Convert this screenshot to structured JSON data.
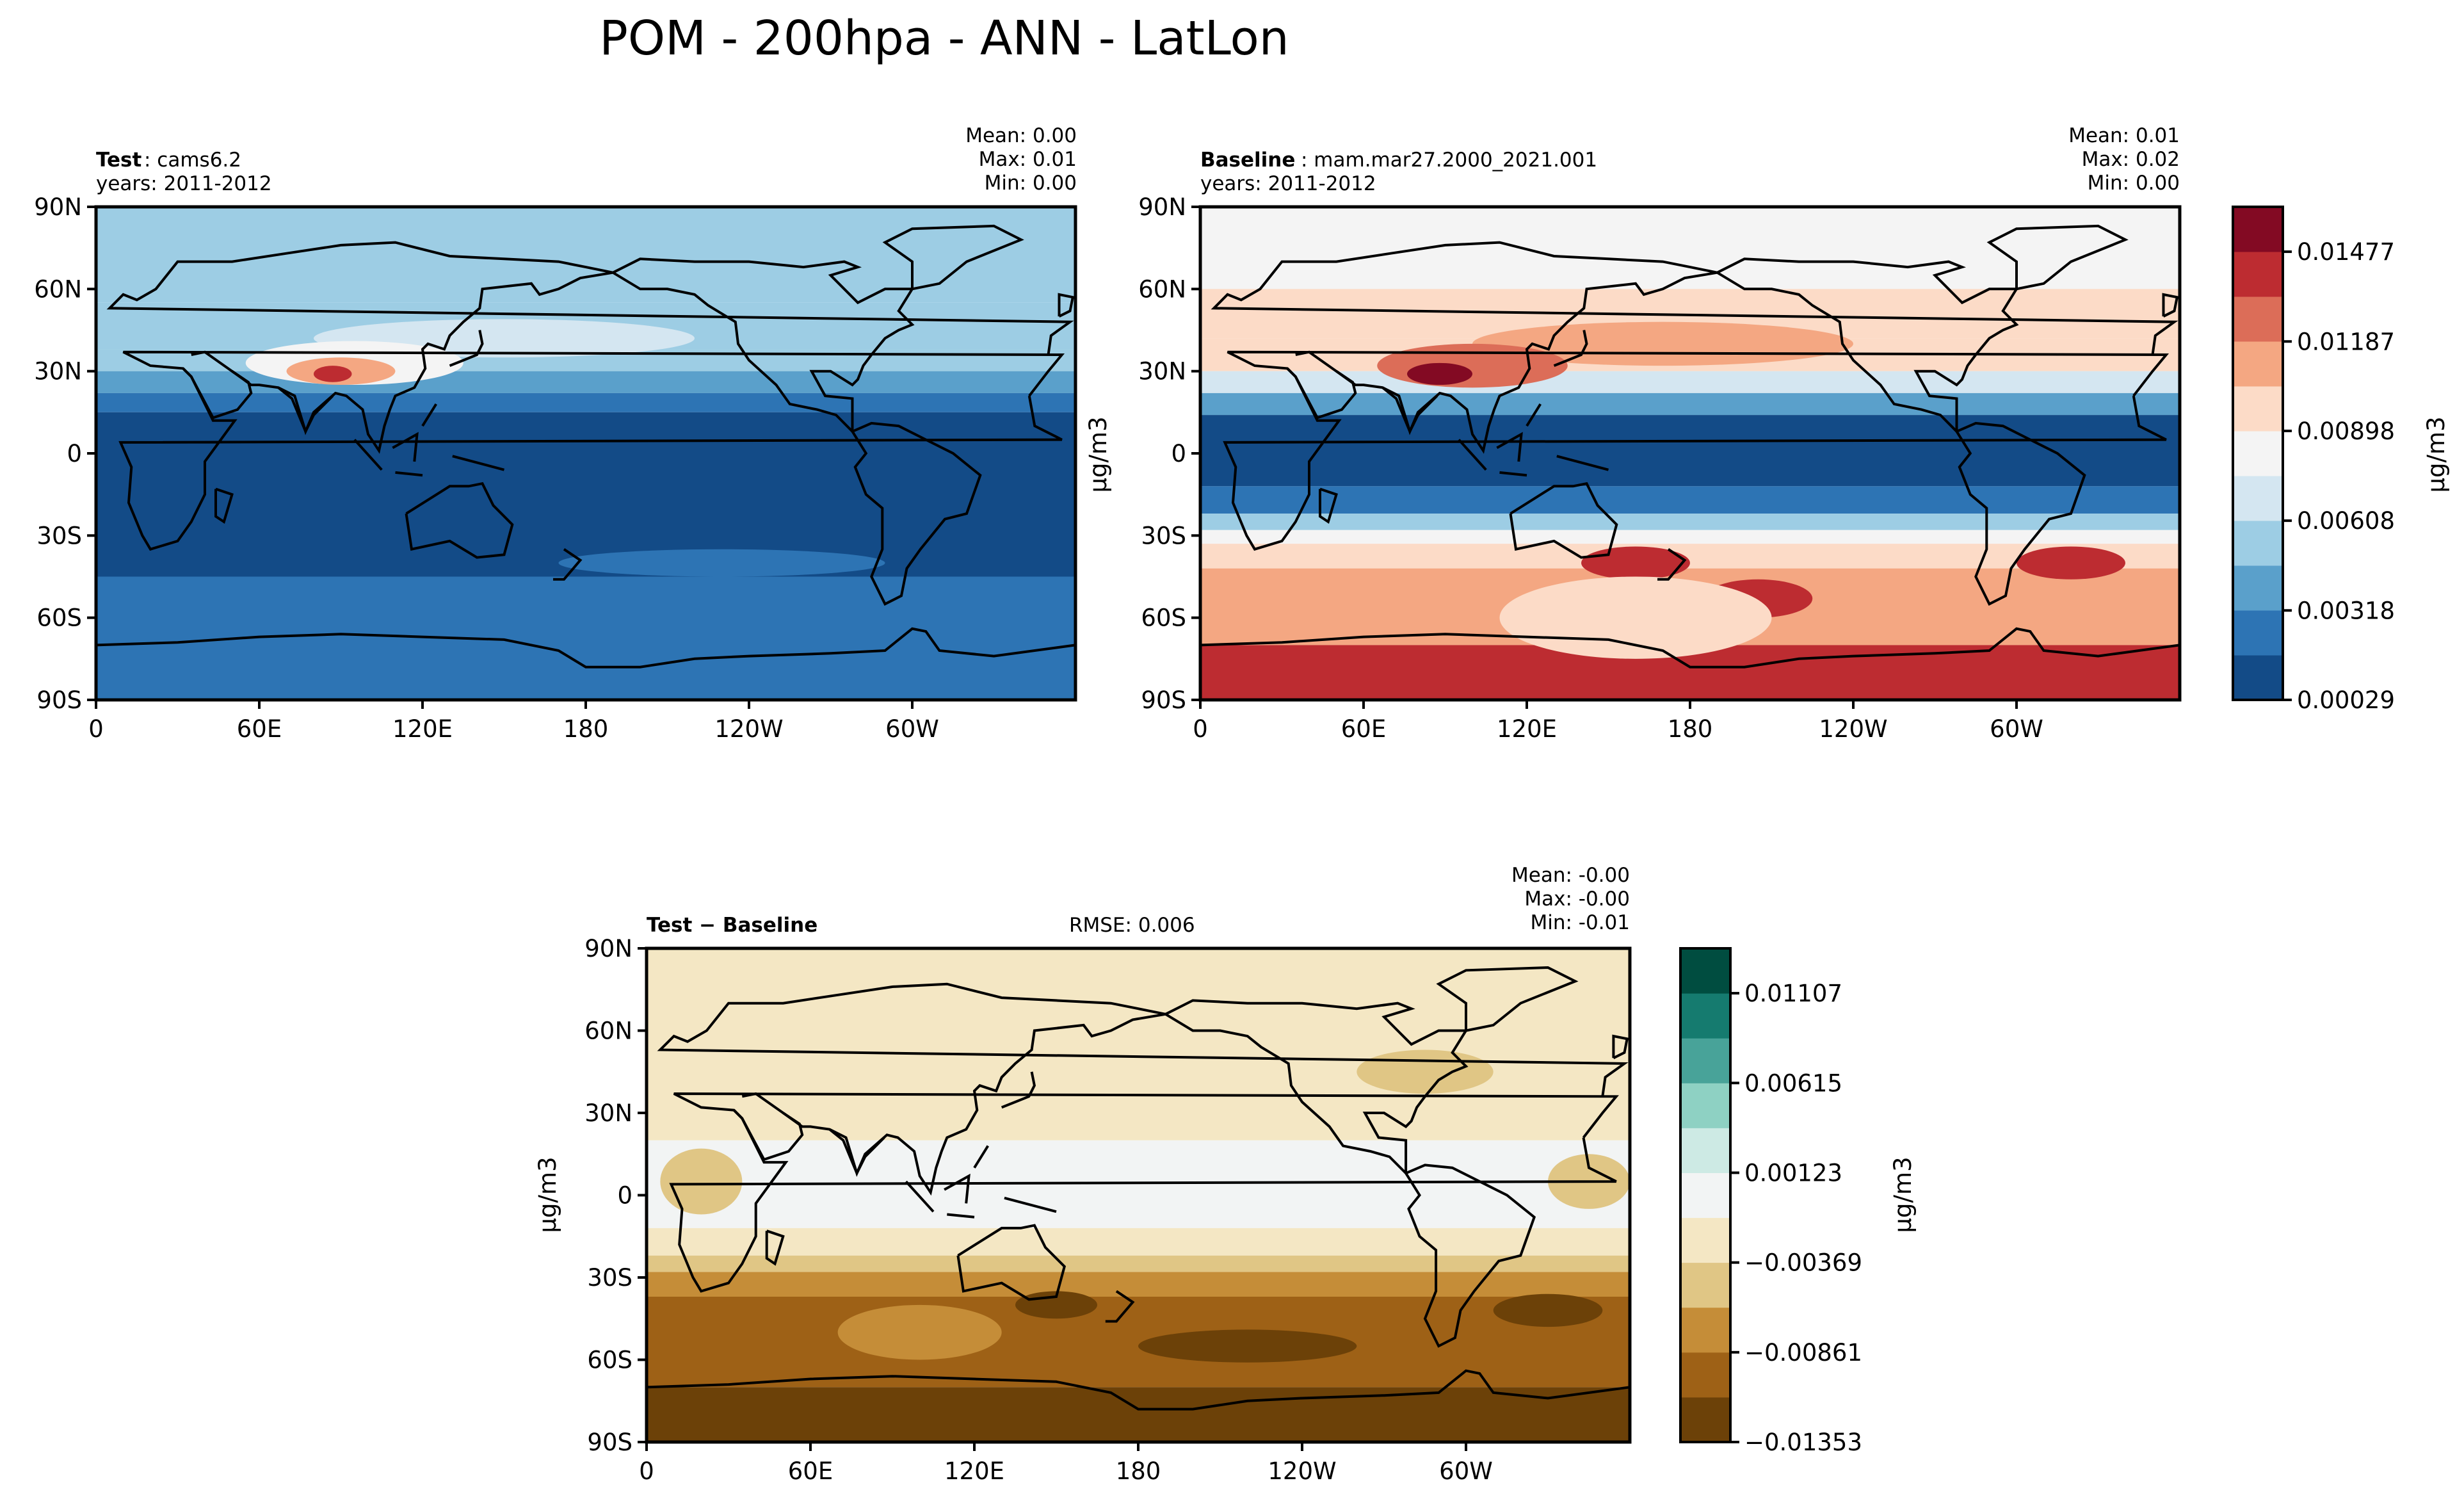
{
  "figure": {
    "title": "POM - 200hpa - ANN - LatLon"
  },
  "colors": {
    "seq": [
      "#134b87",
      "#2d74b4",
      "#5aa0cb",
      "#9dcde4",
      "#d4e6f1",
      "#f4f4f4",
      "#fcdbc7",
      "#f4a782",
      "#dc6d58",
      "#bd2c31",
      "#830a23"
    ],
    "diff": [
      "#6c4108",
      "#9e6116",
      "#c58d38",
      "#e0c685",
      "#f4e7c4",
      "#f2f4f4",
      "#cdeae4",
      "#8ed1c3",
      "#48a399",
      "#157b6f",
      "#004d40"
    ],
    "outline": "#000000"
  },
  "chart_data": [
    {
      "type": "heatmap",
      "panel": "test",
      "label_bold": "Test",
      "label_rest": ": cams6.2",
      "years": "years: 2011-2012",
      "stats": {
        "mean": "Mean:  0.00",
        "max": "Max:  0.01",
        "min": "Min:  0.00"
      },
      "xticks": [
        "0",
        "60E",
        "120E",
        "180",
        "120W",
        "60W"
      ],
      "yticks": [
        "90N",
        "60N",
        "30N",
        "0",
        "30S",
        "60S",
        "90S"
      ],
      "xlim": [
        0,
        360
      ],
      "ylim": [
        -90,
        90
      ],
      "colormap": "seq",
      "bands": [
        {
          "lat_from": 90,
          "lat_to": 55,
          "level": 3
        },
        {
          "lat_from": 55,
          "lat_to": 38,
          "level": 3
        },
        {
          "lat_from": 38,
          "lat_to": 30,
          "level": 3
        },
        {
          "lat_from": 30,
          "lat_to": 22,
          "level": 2
        },
        {
          "lat_from": 22,
          "lat_to": 15,
          "level": 1
        },
        {
          "lat_from": 15,
          "lat_to": -45,
          "level": 0
        },
        {
          "lat_from": -45,
          "lat_to": -90,
          "level": 1
        }
      ],
      "blobs": [
        {
          "lon": 150,
          "lat": 42,
          "rlon": 70,
          "rlat": 7,
          "level": 4
        },
        {
          "lon": 95,
          "lat": 33,
          "rlon": 40,
          "rlat": 8,
          "level": 5
        },
        {
          "lon": 90,
          "lat": 30,
          "rlon": 20,
          "rlat": 5,
          "level": 7
        },
        {
          "lon": 87,
          "lat": 29,
          "rlon": 7,
          "rlat": 3,
          "level": 9
        },
        {
          "lon": 230,
          "lat": -40,
          "rlon": 60,
          "rlat": 5,
          "level": 1
        }
      ]
    },
    {
      "type": "heatmap",
      "panel": "baseline",
      "label_bold": "Baseline",
      "label_rest": ": mam.mar27.2000_2021.001",
      "years": "years: 2011-2012",
      "stats": {
        "mean": "Mean:  0.01",
        "max": "Max:  0.02",
        "min": "Min:  0.00"
      },
      "xticks": [
        "0",
        "60E",
        "120E",
        "180",
        "120W",
        "60W"
      ],
      "yticks": [
        "90N",
        "60N",
        "30N",
        "0",
        "30S",
        "60S",
        "90S"
      ],
      "xlim": [
        0,
        360
      ],
      "ylim": [
        -90,
        90
      ],
      "colormap": "seq",
      "bands": [
        {
          "lat_from": 90,
          "lat_to": 60,
          "level": 5
        },
        {
          "lat_from": 60,
          "lat_to": 42,
          "level": 6
        },
        {
          "lat_from": 42,
          "lat_to": 30,
          "level": 6
        },
        {
          "lat_from": 30,
          "lat_to": 22,
          "level": 4
        },
        {
          "lat_from": 22,
          "lat_to": 14,
          "level": 2
        },
        {
          "lat_from": 14,
          "lat_to": -12,
          "level": 0
        },
        {
          "lat_from": -12,
          "lat_to": -22,
          "level": 1
        },
        {
          "lat_from": -22,
          "lat_to": -28,
          "level": 3
        },
        {
          "lat_from": -28,
          "lat_to": -33,
          "level": 5
        },
        {
          "lat_from": -33,
          "lat_to": -42,
          "level": 6
        },
        {
          "lat_from": -42,
          "lat_to": -70,
          "level": 7
        },
        {
          "lat_from": -70,
          "lat_to": -90,
          "level": 9
        }
      ],
      "blobs": [
        {
          "lon": 170,
          "lat": 40,
          "rlon": 70,
          "rlat": 8,
          "level": 7
        },
        {
          "lon": 100,
          "lat": 32,
          "rlon": 35,
          "rlat": 8,
          "level": 8
        },
        {
          "lon": 88,
          "lat": 29,
          "rlon": 12,
          "rlat": 4,
          "level": 10
        },
        {
          "lon": 160,
          "lat": -40,
          "rlon": 20,
          "rlat": 6,
          "level": 9
        },
        {
          "lon": 205,
          "lat": -53,
          "rlon": 20,
          "rlat": 7,
          "level": 9
        },
        {
          "lon": 320,
          "lat": -40,
          "rlon": 20,
          "rlat": 6,
          "level": 9
        },
        {
          "lon": 160,
          "lat": -60,
          "rlon": 50,
          "rlat": 15,
          "level": 6
        }
      ]
    },
    {
      "type": "heatmap",
      "panel": "diff",
      "label_bold": "Test − Baseline",
      "rmse": "RMSE: 0.006",
      "stats": {
        "mean": "Mean: -0.00",
        "max": "Max: -0.00",
        "min": "Min: -0.01"
      },
      "xticks": [
        "0",
        "60E",
        "120E",
        "180",
        "120W",
        "60W"
      ],
      "yticks": [
        "90N",
        "60N",
        "30N",
        "0",
        "30S",
        "60S",
        "90S"
      ],
      "xlim": [
        0,
        360
      ],
      "ylim": [
        -90,
        90
      ],
      "ylabel": "μg/m3",
      "colormap": "diff",
      "bands": [
        {
          "lat_from": 90,
          "lat_to": 20,
          "level": 4
        },
        {
          "lat_from": 20,
          "lat_to": -12,
          "level": 5
        },
        {
          "lat_from": -12,
          "lat_to": -22,
          "level": 4
        },
        {
          "lat_from": -22,
          "lat_to": -28,
          "level": 3
        },
        {
          "lat_from": -28,
          "lat_to": -37,
          "level": 2
        },
        {
          "lat_from": -37,
          "lat_to": -70,
          "level": 1
        },
        {
          "lat_from": -70,
          "lat_to": -90,
          "level": 0
        }
      ],
      "blobs": [
        {
          "lon": 285,
          "lat": 45,
          "rlon": 25,
          "rlat": 8,
          "level": 3
        },
        {
          "lon": 20,
          "lat": 5,
          "rlon": 15,
          "rlat": 12,
          "level": 3
        },
        {
          "lon": 345,
          "lat": 5,
          "rlon": 15,
          "rlat": 10,
          "level": 3
        },
        {
          "lon": 150,
          "lat": -40,
          "rlon": 15,
          "rlat": 5,
          "level": 0
        },
        {
          "lon": 220,
          "lat": -55,
          "rlon": 40,
          "rlat": 6,
          "level": 0
        },
        {
          "lon": 330,
          "lat": -42,
          "rlon": 20,
          "rlat": 6,
          "level": 0
        },
        {
          "lon": 100,
          "lat": -50,
          "rlon": 30,
          "rlat": 10,
          "level": 2
        }
      ]
    }
  ],
  "colorbars": {
    "seq": {
      "ticks": [
        "0.01477",
        "0.01187",
        "0.00898",
        "0.00608",
        "0.00318",
        "0.00029"
      ],
      "tick_values": [
        0.01477,
        0.01187,
        0.00898,
        0.00608,
        0.00318,
        0.00029
      ],
      "min": 0.00029,
      "max": 0.01622,
      "label": "μg/m3",
      "side_label": "μg/m3"
    },
    "diff": {
      "ticks": [
        "0.01107",
        "0.00615",
        "0.00123",
        "−0.00369",
        "−0.00861",
        "−0.01353"
      ],
      "tick_values": [
        0.01107,
        0.00615,
        0.00123,
        -0.00369,
        -0.00861,
        -0.01353
      ],
      "min": -0.01353,
      "max": 0.01353,
      "label": "μg/m3"
    }
  }
}
